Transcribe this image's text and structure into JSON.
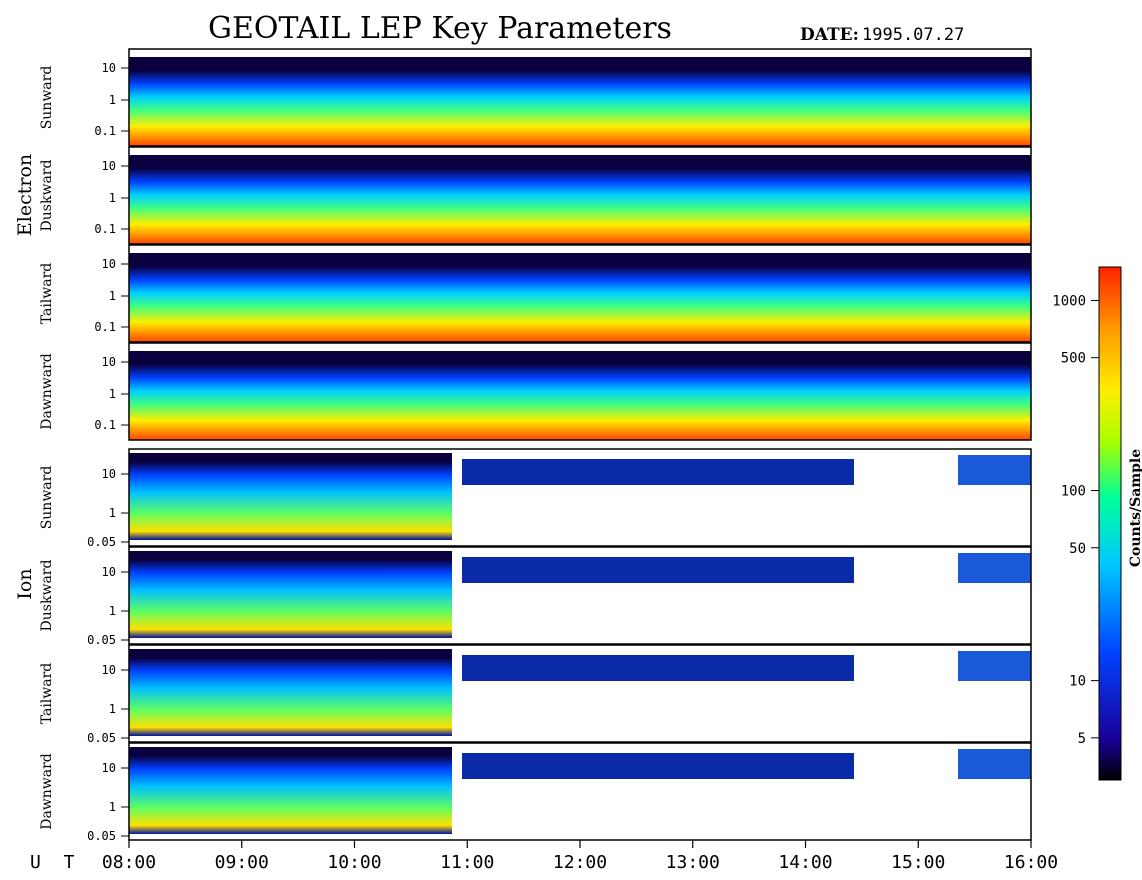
{
  "header": {
    "title": "GEOTAIL LEP Key Parameters",
    "date_label": "DATE:",
    "date_value": "1995.07.27"
  },
  "chart_data": {
    "type": "heatmap",
    "title": "GEOTAIL LEP Key Parameters",
    "time_axis": {
      "label": "U T",
      "range": [
        "08:00",
        "16:00"
      ],
      "ticks": [
        "08:00",
        "09:00",
        "10:00",
        "11:00",
        "12:00",
        "13:00",
        "14:00",
        "15:00",
        "16:00"
      ]
    },
    "groups": [
      {
        "name": "Electron",
        "panels": [
          "Sunward",
          "Duskward",
          "Tailward",
          "Dawnward"
        ],
        "y_ticks": [
          "10",
          "1",
          "0.1"
        ],
        "y_scale": "log"
      },
      {
        "name": "Ion",
        "panels": [
          "Sunward",
          "Duskward",
          "Tailward",
          "Dawnward"
        ],
        "y_ticks": [
          "10",
          "1",
          "0.05"
        ],
        "y_scale": "log"
      }
    ],
    "colorbar": {
      "label": "Counts/Sample",
      "scale": "log",
      "ticks": [
        "1000",
        "500",
        "100",
        "50",
        "10",
        "5"
      ],
      "colors": [
        "#000000",
        "#1a0099",
        "#0044ff",
        "#00c8ff",
        "#00ff99",
        "#aaff00",
        "#ffee00",
        "#ff9900",
        "#ff2200"
      ]
    }
  }
}
